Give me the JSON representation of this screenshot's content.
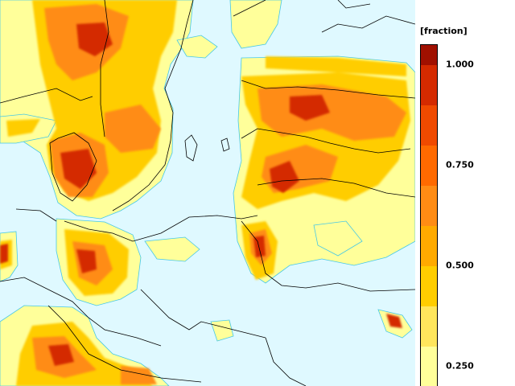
{
  "legend": {
    "title": "[fraction]",
    "ticks": [
      {
        "label": "1.000",
        "value": 1.0
      },
      {
        "label": "0.750",
        "value": 0.75
      },
      {
        "label": "0.500",
        "value": 0.5
      },
      {
        "label": "0.250",
        "value": 0.25
      }
    ],
    "bands": [
      {
        "from": 0.2,
        "to": 0.3,
        "color": "#ffff9a"
      },
      {
        "from": 0.3,
        "to": 0.4,
        "color": "#ffe65c"
      },
      {
        "from": 0.4,
        "to": 0.5,
        "color": "#ffcd00"
      },
      {
        "from": 0.5,
        "to": 0.6,
        "color": "#ffaa00"
      },
      {
        "from": 0.6,
        "to": 0.7,
        "color": "#ff8c14"
      },
      {
        "from": 0.7,
        "to": 0.8,
        "color": "#ff6a00"
      },
      {
        "from": 0.8,
        "to": 0.9,
        "color": "#f04a00"
      },
      {
        "from": 0.9,
        "to": 1.0,
        "color": "#d42a00"
      },
      {
        "from": 1.0,
        "to": 1.05,
        "color": "#a01000"
      }
    ]
  },
  "map": {
    "background_color": "#dff9ff",
    "contour_color": "#46c8e6",
    "border_color": "#000000"
  }
}
